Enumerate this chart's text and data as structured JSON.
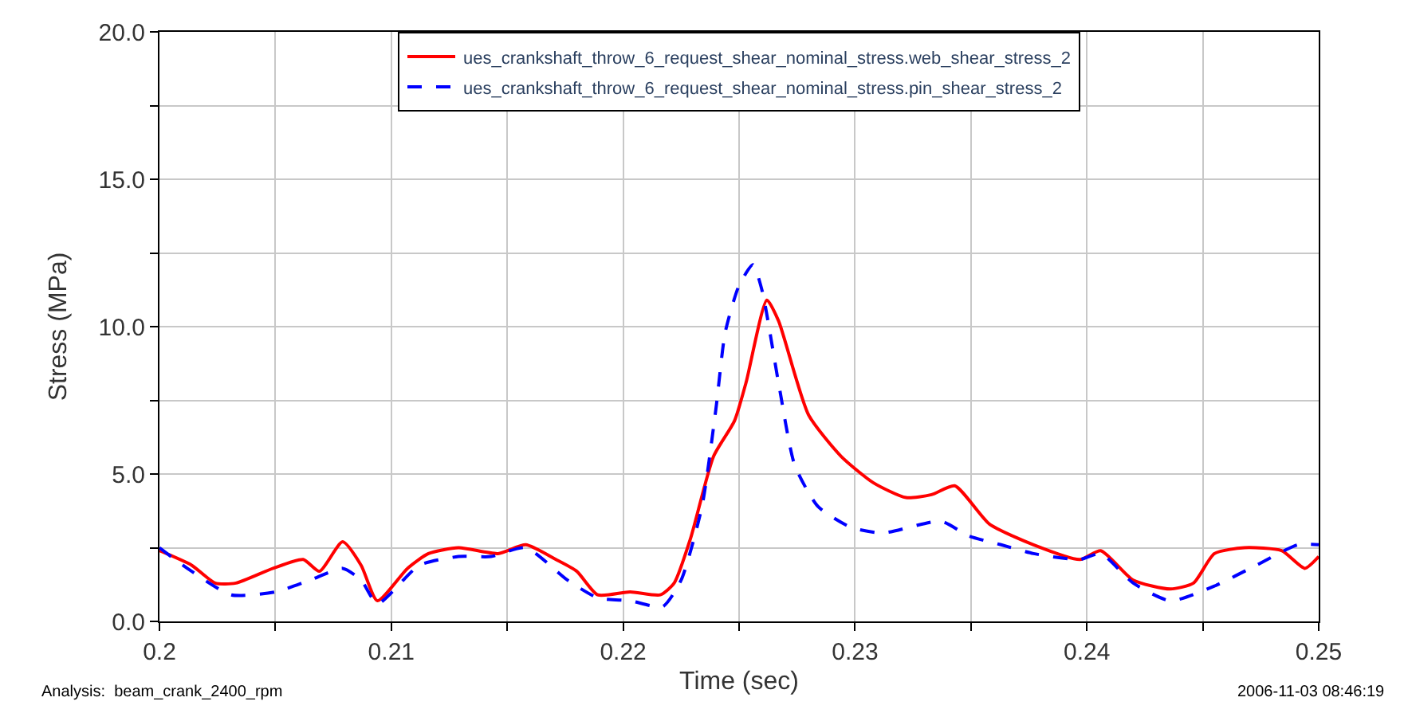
{
  "chart_data": {
    "type": "line",
    "xlabel": "Time (sec)",
    "ylabel": "Stress (MPa)",
    "xlim": [
      0.2,
      0.25
    ],
    "ylim": [
      0,
      20
    ],
    "xticks": [
      {
        "value": 0.2,
        "label": "0.2"
      },
      {
        "value": 0.205,
        "label": null
      },
      {
        "value": 0.21,
        "label": "0.21"
      },
      {
        "value": 0.215,
        "label": null
      },
      {
        "value": 0.22,
        "label": "0.22"
      },
      {
        "value": 0.225,
        "label": null
      },
      {
        "value": 0.23,
        "label": "0.23"
      },
      {
        "value": 0.235,
        "label": null
      },
      {
        "value": 0.24,
        "label": "0.24"
      },
      {
        "value": 0.245,
        "label": null
      },
      {
        "value": 0.25,
        "label": "0.25"
      }
    ],
    "yticks": [
      {
        "value": 0,
        "label": "0.0"
      },
      {
        "value": 2.5,
        "label": null
      },
      {
        "value": 5,
        "label": "5.0"
      },
      {
        "value": 7.5,
        "label": null
      },
      {
        "value": 10,
        "label": "10.0"
      },
      {
        "value": 12.5,
        "label": null
      },
      {
        "value": 15,
        "label": "15.0"
      },
      {
        "value": 17.5,
        "label": null
      },
      {
        "value": 20,
        "label": "20.0"
      }
    ],
    "grid": true,
    "legend": "top",
    "marker": "none",
    "annotations": [
      "Analysis:  beam_crank_2400_rpm",
      "2006-11-03 08:46:19"
    ],
    "series": [
      {
        "name": "ues_crankshaft_throw_6_request_shear_nominal_stress.web_shear_stress_2",
        "color": "#ff0000",
        "line_style": "solid",
        "x": [
          0.2,
          0.2014,
          0.2024,
          0.2033,
          0.2049,
          0.2062,
          0.2069,
          0.2079,
          0.2087,
          0.2094,
          0.2107,
          0.2116,
          0.2129,
          0.2146,
          0.2158,
          0.2171,
          0.218,
          0.2189,
          0.2203,
          0.2216,
          0.2222,
          0.2229,
          0.2239,
          0.2248,
          0.2253,
          0.2262,
          0.2267,
          0.228,
          0.2294,
          0.2308,
          0.2322,
          0.2333,
          0.2343,
          0.2358,
          0.2377,
          0.2397,
          0.2406,
          0.242,
          0.2436,
          0.2446,
          0.2455,
          0.2468,
          0.2484,
          0.2494,
          0.25
        ],
        "values": [
          2.4,
          1.9,
          1.3,
          1.3,
          1.8,
          2.1,
          1.7,
          2.7,
          1.9,
          0.7,
          1.8,
          2.3,
          2.5,
          2.3,
          2.6,
          2.1,
          1.7,
          0.9,
          1.0,
          0.9,
          1.3,
          2.8,
          5.6,
          6.8,
          8.1,
          10.9,
          10.2,
          7.0,
          5.6,
          4.7,
          4.2,
          4.3,
          4.6,
          3.3,
          2.6,
          2.1,
          2.4,
          1.4,
          1.1,
          1.3,
          2.3,
          2.5,
          2.4,
          1.8,
          2.2
        ]
      },
      {
        "name": "ues_crankshaft_throw_6_request_shear_nominal_stress.pin_shear_stress_2",
        "color": "#0000ff",
        "line_style": "dashed",
        "x": [
          0.2,
          0.2012,
          0.2031,
          0.205,
          0.2065,
          0.2079,
          0.2087,
          0.2094,
          0.2112,
          0.2129,
          0.2143,
          0.2158,
          0.2176,
          0.2189,
          0.2203,
          0.2217,
          0.2225,
          0.2234,
          0.224,
          0.2244,
          0.225,
          0.2256,
          0.226,
          0.2267,
          0.2274,
          0.2284,
          0.2298,
          0.2312,
          0.2337,
          0.2349,
          0.2363,
          0.2377,
          0.2397,
          0.2406,
          0.242,
          0.2436,
          0.2455,
          0.2473,
          0.2491,
          0.25
        ],
        "values": [
          2.5,
          1.8,
          0.9,
          1.0,
          1.4,
          1.8,
          1.4,
          0.6,
          1.9,
          2.2,
          2.2,
          2.5,
          1.4,
          0.8,
          0.7,
          0.5,
          1.4,
          3.9,
          7.2,
          9.8,
          11.4,
          12.1,
          11.2,
          8.1,
          5.3,
          3.9,
          3.2,
          3.0,
          3.4,
          2.9,
          2.6,
          2.3,
          2.1,
          2.3,
          1.3,
          0.7,
          1.2,
          1.9,
          2.6,
          2.6
        ]
      }
    ]
  }
}
